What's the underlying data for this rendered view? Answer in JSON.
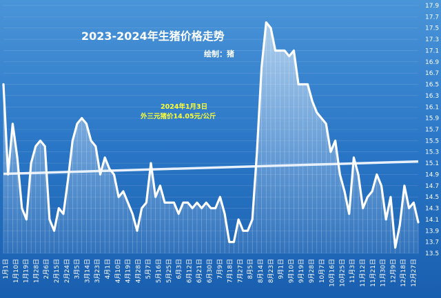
{
  "chart_data": {
    "type": "line",
    "title": "2023-2024年生猪价格走势",
    "subtitle": "绘制：猪",
    "annotation": [
      "2024年1月3日",
      "外三元猪价14.05元/公斤"
    ],
    "xlabel": "",
    "ylabel": "",
    "ylim": [
      13.5,
      17.9
    ],
    "yticks": [
      13.5,
      13.7,
      13.9,
      14.1,
      14.3,
      14.5,
      14.7,
      14.9,
      15.1,
      15.3,
      15.5,
      15.7,
      15.9,
      16.1,
      16.3,
      16.5,
      16.7,
      16.9,
      17.1,
      17.3,
      17.5,
      17.7,
      17.9
    ],
    "xtick_labels": [
      "1月1日",
      "1月10日",
      "1月19日",
      "1月28日",
      "2月6日",
      "2月15日",
      "2月24日",
      "3月5日",
      "3月14日",
      "3月23日",
      "4月1日",
      "4月10日",
      "4月19日",
      "4月28日",
      "5月7日",
      "5月16日",
      "5月25日",
      "6月3日",
      "6月12日",
      "6月21日",
      "6月30日",
      "7月9日",
      "7月18日",
      "7月27日",
      "8月5日",
      "8月14日",
      "8月23日",
      "9月1日",
      "9月10日",
      "9月19日",
      "9月28日",
      "10月7日",
      "10月16日",
      "10月25日",
      "11月3日",
      "11月12日",
      "11月21日",
      "11月30日",
      "12月9日",
      "12月18日",
      "12月27日"
    ],
    "series": [
      {
        "values": [
          16.5,
          14.9,
          15.8,
          15.2,
          14.3,
          14.1,
          15.1,
          15.4,
          15.5,
          15.4,
          14.1,
          13.9,
          14.3,
          14.2,
          14.8,
          15.5,
          15.8,
          15.9,
          15.8,
          15.5,
          15.4,
          14.9,
          15.2,
          15.0,
          14.9,
          14.5,
          14.6,
          14.4,
          14.2,
          13.9,
          14.3,
          14.4,
          15.1,
          14.5,
          14.7,
          14.4,
          14.4,
          14.4,
          14.2,
          14.4,
          14.4,
          14.3,
          14.4,
          14.3,
          14.4,
          14.3,
          14.3,
          14.5,
          14.2,
          13.7,
          13.7,
          14.1,
          13.9,
          13.9,
          14.1,
          15.3,
          16.8,
          17.6,
          17.5,
          17.1,
          17.1,
          17.1,
          17.0,
          17.1,
          16.5,
          16.5,
          16.5,
          16.2,
          16.0,
          15.9,
          15.8,
          15.3,
          15.5,
          14.9,
          14.6,
          14.2,
          15.2,
          14.9,
          14.3,
          14.5,
          14.6,
          14.9,
          14.7,
          14.1,
          14.5,
          13.6,
          14.0,
          14.7,
          14.3,
          14.4,
          14.05
        ]
      }
    ],
    "trend": [
      14.91,
      15.13
    ]
  }
}
